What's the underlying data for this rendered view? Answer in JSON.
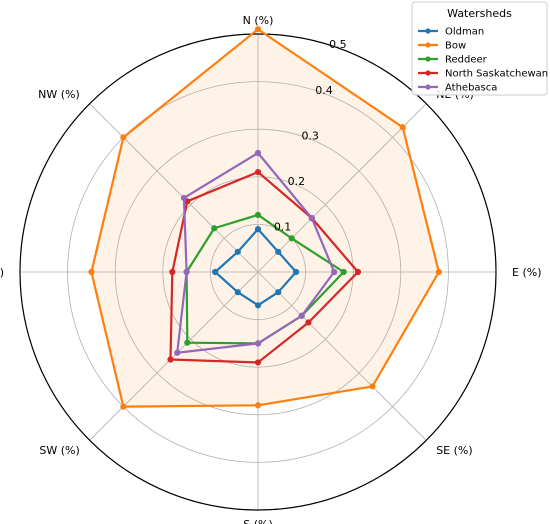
{
  "chart_data": {
    "type": "radar",
    "axes": [
      "N (%)",
      "NE (%)",
      "E (%)",
      "SE (%)",
      "S (%)",
      "SW (%)",
      "W (%)",
      "NW (%)"
    ],
    "radial_ticks": [
      0.1,
      0.2,
      0.3,
      0.4,
      0.5
    ],
    "rmax": 0.5,
    "grid": true,
    "legend": {
      "title": "Watersheds",
      "placement": "top-right"
    },
    "series": [
      {
        "name": "Oldman",
        "color": "#1f77b4",
        "values": [
          0.09,
          0.06,
          0.08,
          0.06,
          0.07,
          0.06,
          0.09,
          0.06
        ]
      },
      {
        "name": "Bow",
        "color": "#ff7f0e",
        "values": [
          0.51,
          0.43,
          0.38,
          0.34,
          0.28,
          0.4,
          0.35,
          0.4
        ]
      },
      {
        "name": "Reddeer",
        "color": "#2ca02c",
        "values": [
          0.12,
          0.1,
          0.18,
          0.13,
          0.15,
          0.21,
          0.15,
          0.13
        ]
      },
      {
        "name": "North Saskatchewan",
        "color": "#d62728",
        "values": [
          0.21,
          0.16,
          0.21,
          0.15,
          0.19,
          0.26,
          0.18,
          0.21
        ]
      },
      {
        "name": "Athebasca",
        "color": "#9467bd",
        "values": [
          0.25,
          0.16,
          0.16,
          0.13,
          0.15,
          0.24,
          0.15,
          0.22
        ]
      }
    ],
    "fill_series": "Bow",
    "fill_color": "#ff7f0e"
  }
}
